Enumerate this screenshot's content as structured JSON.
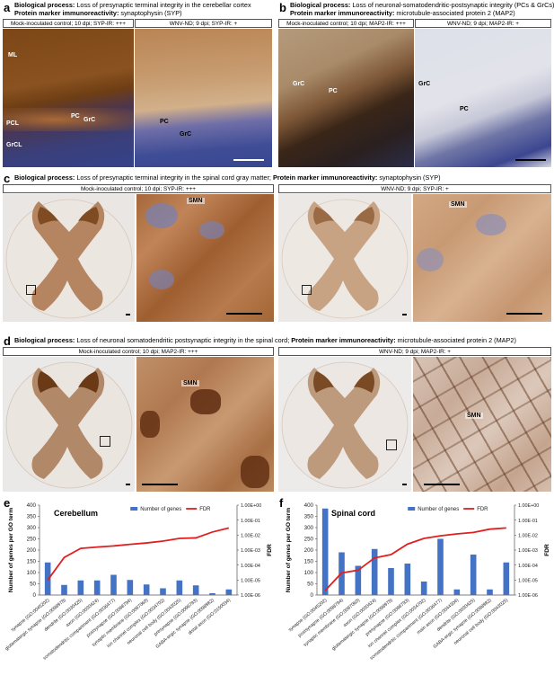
{
  "panels": {
    "a": {
      "label": "a",
      "bp_prefix": "Biological process:",
      "bp_text": "Loss of presynaptic terminal integrity in the cerebellar cortex",
      "pm_prefix": "Protein marker immunoreactivity:",
      "pm_text": "synaptophysin (SYP)",
      "left_header": "Mock-inoculated control; 10 dpi; SYP-IR: +++",
      "right_header": "WNV-ND; 9 dpi; SYP-IR: +",
      "left_labels": [
        "ML",
        "PCL",
        "PC",
        "GrC",
        "GrCL"
      ],
      "right_labels": [
        "PC",
        "GrC"
      ]
    },
    "b": {
      "label": "b",
      "bp_prefix": "Biological process:",
      "bp_text": "Loss of neuronal-somatodendritic-postsynaptic integrity (PCs & GrCs)",
      "pm_prefix": "Protein marker immunoreactivity:",
      "pm_text": "microtubule-associated protein 2 (MAP2)",
      "left_header": "Mock-inoculated control; 10 dpi; MAP2-IR: +++",
      "right_header": "WNV-ND; 9 dpi; MAP2-IR: +",
      "left_labels": [
        "GrC",
        "PC"
      ],
      "right_labels": [
        "GrC",
        "PC"
      ]
    },
    "c": {
      "label": "c",
      "bp_prefix": "Biological process:",
      "bp_text": "Loss of presynaptic terminal integrity in the spinal cord gray matter;",
      "pm_prefix": "Protein marker immunoreactivity:",
      "pm_text": "synaptophysin (SYP)",
      "left_header": "Mock-inoculated control; 10 dpi; SYP-IR: +++",
      "right_header": "WNV-ND; 9 dpi; SYP-IR: +",
      "smn": "SMN"
    },
    "d": {
      "label": "d",
      "bp_prefix": "Biological process:",
      "bp_text": "Loss of neuronal somatodendritic postsynaptic integrity in the spinal cord;",
      "pm_prefix": "Protein marker immunoreactivity:",
      "pm_text": "microtubule-associated protein 2 (MAP2)",
      "left_header": "Mock-inoculated control; 10 dpi; MAP2-IR: +++",
      "right_header": "WNV-ND; 9 dpi; MAP2-IR: +",
      "smn": "SMN"
    }
  },
  "colors": {
    "stain_dark": "#6b3a12",
    "stain_mid": "#a0642e",
    "stain_light": "#d8b48e",
    "background_tissue": "#ece4da",
    "nuclei": "#2b3a8a",
    "bar_blue": "#4472c4",
    "fdr_red": "#e02020"
  },
  "chart_data": [
    {
      "panel": "e",
      "type": "bar",
      "title": "Cerebellum",
      "categories": [
        "synapse (GO:0045202)",
        "glutamatergic synapse (GO:0098978)",
        "dendrite (GO:0030425)",
        "axon (GO:0030424)",
        "somatodendritic compartment (GO:0036477)",
        "postsynapse (GO:0098794)",
        "synaptic membrane (GO:0097060)",
        "ion channel complex (GO:0034702)",
        "neuronal cell body (GO:0043025)",
        "presynapse (GO:0098793)",
        "GABA-ergic synapse (GO:0098982)",
        "distal axon (GO:0150034)"
      ],
      "series": [
        {
          "name": "Number of genes",
          "axis": "left",
          "kind": "bar",
          "values": [
            145,
            45,
            65,
            65,
            90,
            67,
            47,
            30,
            65,
            43,
            8,
            25
          ]
        },
        {
          "name": "FDR",
          "axis": "right",
          "kind": "line",
          "log": true,
          "values": [
            1e-05,
            0.00032,
            0.0013,
            0.0016,
            0.0019,
            0.0024,
            0.003,
            0.004,
            0.006,
            0.0065,
            0.016,
            0.03
          ]
        }
      ],
      "ylabel": "Number of genes per GO term",
      "y2label": "FDR",
      "ylim": [
        0,
        400
      ],
      "yticks": [
        "0",
        "50",
        "100",
        "150",
        "200",
        "250",
        "300",
        "350",
        "400"
      ],
      "y2ticks": [
        "1.00E-06",
        "1.00E-05",
        "1.00E-04",
        "1.00E-03",
        "1.00E-02",
        "1.00E-01",
        "1.00E+00"
      ],
      "y2lim": [
        1e-06,
        1
      ],
      "legend_placement": "top-right"
    },
    {
      "panel": "f",
      "type": "bar",
      "title": "Spinal cord",
      "categories": [
        "synapse (GO:0045202)",
        "postsynapse (GO:0098794)",
        "synaptic membrane (GO:0097060)",
        "axon (GO:0030424)",
        "glutamatergic synapse (GO:0098978)",
        "presynapse (GO:0098793)",
        "ion channel complex (GO:0034702)",
        "somatodendritic compartment (GO:0036477)",
        "main axon (GO:0044304)",
        "dendrite (GO:0030425)",
        "GABA-ergic synapse (GO:0098982)",
        "neuronal cell body (GO:0043025)"
      ],
      "series": [
        {
          "name": "Number of genes",
          "axis": "left",
          "kind": "bar",
          "values": [
            385,
            190,
            130,
            205,
            120,
            140,
            60,
            250,
            25,
            180,
            25,
            145
          ]
        },
        {
          "name": "FDR",
          "axis": "right",
          "kind": "line",
          "log": true,
          "values": [
            2e-06,
            3e-05,
            4.5e-05,
            0.0003,
            0.0005,
            0.0025,
            0.006,
            0.009,
            0.012,
            0.015,
            0.025,
            0.03
          ]
        }
      ],
      "ylabel": "Number of genes per GO term",
      "y2label": "FDR",
      "ylim": [
        0,
        400
      ],
      "yticks": [
        "0",
        "50",
        "100",
        "150",
        "200",
        "250",
        "300",
        "350",
        "400"
      ],
      "y2ticks": [
        "1.00E-06",
        "1.00E-05",
        "1.00E-04",
        "1.00E-03",
        "1.00E-02",
        "1.00E-01",
        "1.00E+00"
      ],
      "y2lim": [
        1e-06,
        1
      ],
      "legend_placement": "top-right"
    }
  ]
}
